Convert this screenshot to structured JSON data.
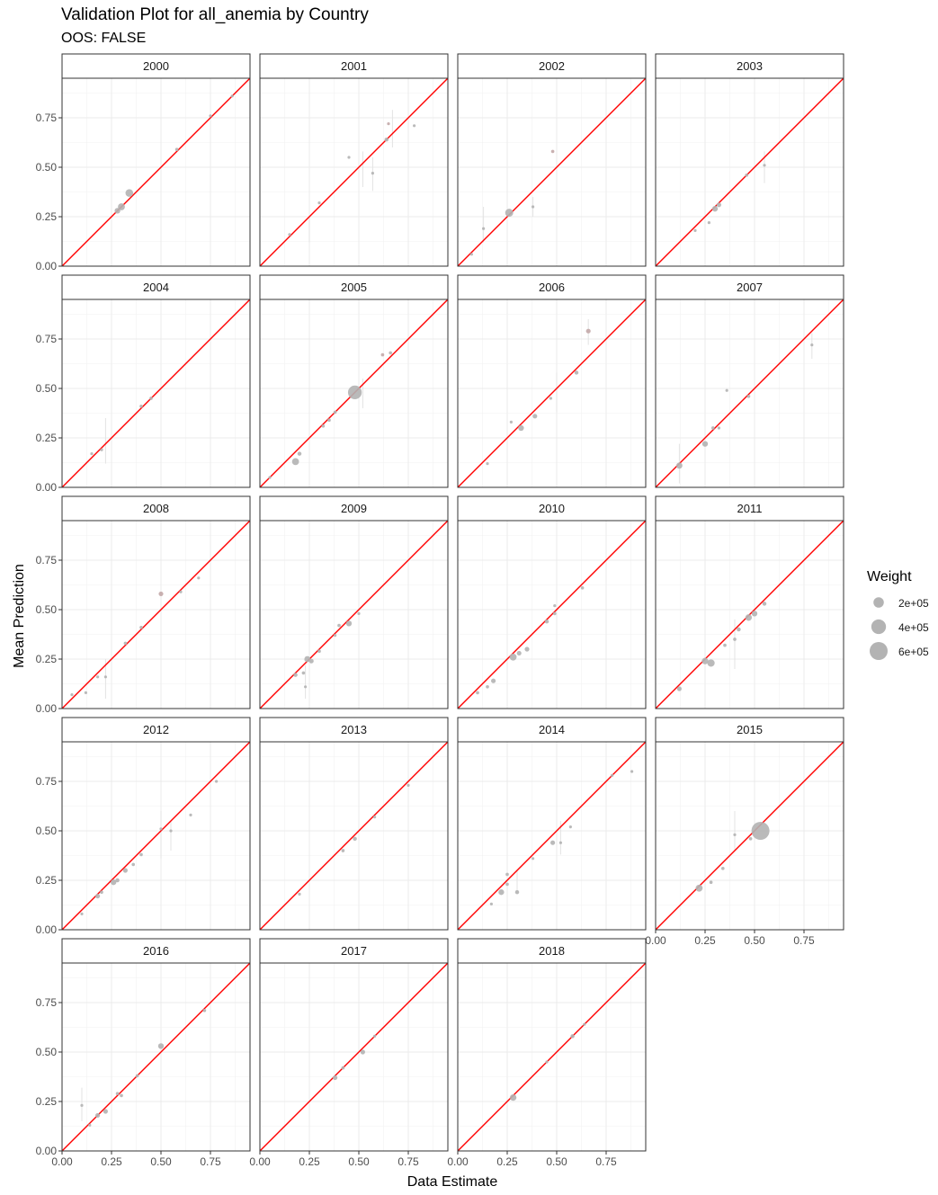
{
  "chart_data": {
    "type": "scatter",
    "title": "Validation Plot for all_anemia by Country",
    "subtitle": "OOS: FALSE",
    "xlabel": "Data Estimate",
    "ylabel": "Mean Prediction",
    "xlim": [
      0,
      0.95
    ],
    "ylim": [
      0,
      0.95
    ],
    "x_ticks": [
      0,
      0.25,
      0.5,
      0.75
    ],
    "y_ticks": [
      0,
      0.25,
      0.5,
      0.75
    ],
    "x_tick_labels": [
      "0.00",
      "0.25",
      "0.50",
      "0.75"
    ],
    "y_tick_labels": [
      "0.00",
      "0.25",
      "0.50",
      "0.75"
    ],
    "grid": true,
    "reference_line": {
      "slope": 1,
      "intercept": 0,
      "color": "#ff0000"
    },
    "point_color": "#b3b3b3",
    "legend": {
      "title": "Weight",
      "placement": "right",
      "entries": [
        {
          "label": "2e+05",
          "weight": 200000
        },
        {
          "label": "4e+05",
          "weight": 400000
        },
        {
          "label": "6e+05",
          "weight": 600000
        }
      ]
    },
    "panels": [
      {
        "label": "2000",
        "points": [
          [
            0.28,
            0.28,
            60000
          ],
          [
            0.3,
            0.3,
            90000
          ],
          [
            0.34,
            0.37,
            110000
          ],
          [
            0.58,
            0.59,
            20000
          ],
          [
            0.75,
            0.76,
            15000
          ],
          [
            0.86,
            0.86,
            10000
          ]
        ],
        "intervals": []
      },
      {
        "label": "2001",
        "points": [
          [
            0.15,
            0.16,
            10000
          ],
          [
            0.3,
            0.32,
            10000
          ],
          [
            0.45,
            0.55,
            10000
          ],
          [
            0.57,
            0.47,
            10000
          ],
          [
            0.64,
            0.64,
            30000
          ],
          [
            0.65,
            0.72,
            10000
          ],
          [
            0.78,
            0.71,
            10000
          ]
        ],
        "intervals": [
          [
            0.25,
            0.12,
            0.25
          ],
          [
            0.52,
            0.4,
            0.58
          ],
          [
            0.57,
            0.38,
            0.55
          ],
          [
            0.67,
            0.6,
            0.79
          ]
        ]
      },
      {
        "label": "2002",
        "points": [
          [
            0.07,
            0.06,
            15000
          ],
          [
            0.13,
            0.19,
            15000
          ],
          [
            0.26,
            0.27,
            120000
          ],
          [
            0.38,
            0.3,
            10000
          ],
          [
            0.48,
            0.58,
            20000
          ]
        ],
        "intervals": [
          [
            0.13,
            0.12,
            0.3
          ],
          [
            0.38,
            0.25,
            0.35
          ]
        ]
      },
      {
        "label": "2003",
        "points": [
          [
            0.2,
            0.18,
            15000
          ],
          [
            0.27,
            0.22,
            15000
          ],
          [
            0.3,
            0.29,
            60000
          ],
          [
            0.32,
            0.31,
            40000
          ],
          [
            0.46,
            0.46,
            20000
          ],
          [
            0.55,
            0.51,
            15000
          ]
        ],
        "intervals": [
          [
            0.55,
            0.42,
            0.58
          ]
        ]
      },
      {
        "label": "2004",
        "points": [
          [
            0.15,
            0.17,
            15000
          ],
          [
            0.2,
            0.19,
            15000
          ],
          [
            0.4,
            0.41,
            20000
          ],
          [
            0.45,
            0.45,
            20000
          ]
        ],
        "intervals": [
          [
            0.22,
            0.12,
            0.35
          ]
        ]
      },
      {
        "label": "2005",
        "points": [
          [
            0.05,
            0.05,
            10000
          ],
          [
            0.18,
            0.13,
            90000
          ],
          [
            0.2,
            0.17,
            30000
          ],
          [
            0.32,
            0.31,
            20000
          ],
          [
            0.35,
            0.34,
            20000
          ],
          [
            0.38,
            0.38,
            20000
          ],
          [
            0.48,
            0.48,
            350000
          ],
          [
            0.62,
            0.67,
            20000
          ],
          [
            0.66,
            0.68,
            20000
          ]
        ],
        "intervals": [
          [
            0.52,
            0.4,
            0.55
          ]
        ]
      },
      {
        "label": "2006",
        "points": [
          [
            0.15,
            0.12,
            10000
          ],
          [
            0.27,
            0.33,
            10000
          ],
          [
            0.32,
            0.3,
            60000
          ],
          [
            0.39,
            0.36,
            40000
          ],
          [
            0.47,
            0.45,
            15000
          ],
          [
            0.6,
            0.58,
            30000
          ],
          [
            0.66,
            0.79,
            40000
          ]
        ],
        "intervals": [
          [
            0.66,
            0.72,
            0.85
          ],
          [
            0.5,
            0.38,
            0.58
          ]
        ]
      },
      {
        "label": "2007",
        "points": [
          [
            0.12,
            0.11,
            70000
          ],
          [
            0.25,
            0.22,
            60000
          ],
          [
            0.29,
            0.3,
            20000
          ],
          [
            0.32,
            0.3,
            15000
          ],
          [
            0.36,
            0.49,
            10000
          ],
          [
            0.47,
            0.46,
            20000
          ],
          [
            0.79,
            0.72,
            10000
          ]
        ],
        "intervals": [
          [
            0.12,
            0.02,
            0.22
          ],
          [
            0.79,
            0.65,
            0.78
          ]
        ]
      },
      {
        "label": "2008",
        "points": [
          [
            0.05,
            0.07,
            10000
          ],
          [
            0.12,
            0.08,
            10000
          ],
          [
            0.18,
            0.16,
            15000
          ],
          [
            0.22,
            0.16,
            15000
          ],
          [
            0.32,
            0.33,
            20000
          ],
          [
            0.4,
            0.41,
            20000
          ],
          [
            0.5,
            0.58,
            40000
          ],
          [
            0.6,
            0.59,
            15000
          ],
          [
            0.69,
            0.66,
            15000
          ]
        ],
        "intervals": [
          [
            0.22,
            0.05,
            0.25
          ]
        ]
      },
      {
        "label": "2009",
        "points": [
          [
            0.18,
            0.17,
            30000
          ],
          [
            0.22,
            0.18,
            20000
          ],
          [
            0.23,
            0.11,
            10000
          ],
          [
            0.24,
            0.25,
            70000
          ],
          [
            0.26,
            0.24,
            40000
          ],
          [
            0.3,
            0.29,
            20000
          ],
          [
            0.38,
            0.37,
            15000
          ],
          [
            0.4,
            0.42,
            20000
          ],
          [
            0.45,
            0.43,
            60000
          ],
          [
            0.5,
            0.48,
            15000
          ]
        ],
        "intervals": [
          [
            0.23,
            0.05,
            0.22
          ]
        ]
      },
      {
        "label": "2010",
        "points": [
          [
            0.1,
            0.08,
            20000
          ],
          [
            0.15,
            0.11,
            20000
          ],
          [
            0.18,
            0.14,
            40000
          ],
          [
            0.28,
            0.26,
            90000
          ],
          [
            0.31,
            0.28,
            40000
          ],
          [
            0.35,
            0.3,
            40000
          ],
          [
            0.45,
            0.44,
            30000
          ],
          [
            0.49,
            0.48,
            20000
          ],
          [
            0.49,
            0.52,
            10000
          ],
          [
            0.63,
            0.61,
            20000
          ]
        ],
        "intervals": []
      },
      {
        "label": "2011",
        "points": [
          [
            0.12,
            0.1,
            40000
          ],
          [
            0.25,
            0.24,
            80000
          ],
          [
            0.28,
            0.23,
            100000
          ],
          [
            0.35,
            0.32,
            20000
          ],
          [
            0.4,
            0.35,
            20000
          ],
          [
            0.42,
            0.4,
            30000
          ],
          [
            0.47,
            0.46,
            80000
          ],
          [
            0.5,
            0.48,
            60000
          ],
          [
            0.55,
            0.53,
            30000
          ]
        ],
        "intervals": [
          [
            0.4,
            0.2,
            0.45
          ]
        ]
      },
      {
        "label": "2012",
        "points": [
          [
            0.1,
            0.08,
            15000
          ],
          [
            0.18,
            0.17,
            40000
          ],
          [
            0.2,
            0.19,
            20000
          ],
          [
            0.26,
            0.24,
            60000
          ],
          [
            0.28,
            0.25,
            30000
          ],
          [
            0.32,
            0.3,
            40000
          ],
          [
            0.36,
            0.33,
            20000
          ],
          [
            0.4,
            0.38,
            20000
          ],
          [
            0.5,
            0.51,
            10000
          ],
          [
            0.55,
            0.5,
            15000
          ],
          [
            0.65,
            0.58,
            15000
          ],
          [
            0.78,
            0.75,
            15000
          ]
        ],
        "intervals": [
          [
            0.5,
            0.36,
            0.6
          ],
          [
            0.55,
            0.4,
            0.55
          ]
        ]
      },
      {
        "label": "2013",
        "points": [
          [
            0.2,
            0.18,
            15000
          ],
          [
            0.42,
            0.4,
            20000
          ],
          [
            0.48,
            0.46,
            30000
          ],
          [
            0.58,
            0.57,
            15000
          ],
          [
            0.75,
            0.73,
            15000
          ]
        ],
        "intervals": []
      },
      {
        "label": "2014",
        "points": [
          [
            0.17,
            0.13,
            15000
          ],
          [
            0.22,
            0.19,
            60000
          ],
          [
            0.25,
            0.28,
            20000
          ],
          [
            0.25,
            0.23,
            20000
          ],
          [
            0.3,
            0.19,
            30000
          ],
          [
            0.38,
            0.36,
            15000
          ],
          [
            0.48,
            0.44,
            40000
          ],
          [
            0.52,
            0.44,
            15000
          ],
          [
            0.57,
            0.52,
            15000
          ],
          [
            0.78,
            0.78,
            15000
          ],
          [
            0.88,
            0.8,
            15000
          ]
        ],
        "intervals": [
          [
            0.3,
            0.18,
            0.3
          ],
          [
            0.52,
            0.38,
            0.55
          ]
        ]
      },
      {
        "label": "2015",
        "points": [
          [
            0.22,
            0.21,
            90000
          ],
          [
            0.28,
            0.24,
            20000
          ],
          [
            0.34,
            0.31,
            20000
          ],
          [
            0.4,
            0.48,
            15000
          ],
          [
            0.48,
            0.46,
            20000
          ],
          [
            0.53,
            0.5,
            600000
          ]
        ],
        "intervals": [
          [
            0.4,
            0.4,
            0.6
          ]
        ]
      },
      {
        "label": "2016",
        "points": [
          [
            0.1,
            0.23,
            15000
          ],
          [
            0.14,
            0.13,
            15000
          ],
          [
            0.18,
            0.18,
            40000
          ],
          [
            0.22,
            0.2,
            40000
          ],
          [
            0.28,
            0.29,
            20000
          ],
          [
            0.3,
            0.28,
            20000
          ],
          [
            0.38,
            0.38,
            20000
          ],
          [
            0.5,
            0.53,
            60000
          ],
          [
            0.72,
            0.71,
            20000
          ]
        ],
        "intervals": [
          [
            0.1,
            0.15,
            0.32
          ]
        ]
      },
      {
        "label": "2017",
        "points": [
          [
            0.38,
            0.37,
            40000
          ],
          [
            0.42,
            0.42,
            20000
          ],
          [
            0.52,
            0.5,
            40000
          ],
          [
            0.58,
            0.58,
            15000
          ]
        ],
        "intervals": []
      },
      {
        "label": "2018",
        "points": [
          [
            0.28,
            0.27,
            80000
          ],
          [
            0.45,
            0.45,
            15000
          ],
          [
            0.58,
            0.58,
            30000
          ],
          [
            0.64,
            0.64,
            15000
          ]
        ],
        "intervals": []
      }
    ]
  }
}
